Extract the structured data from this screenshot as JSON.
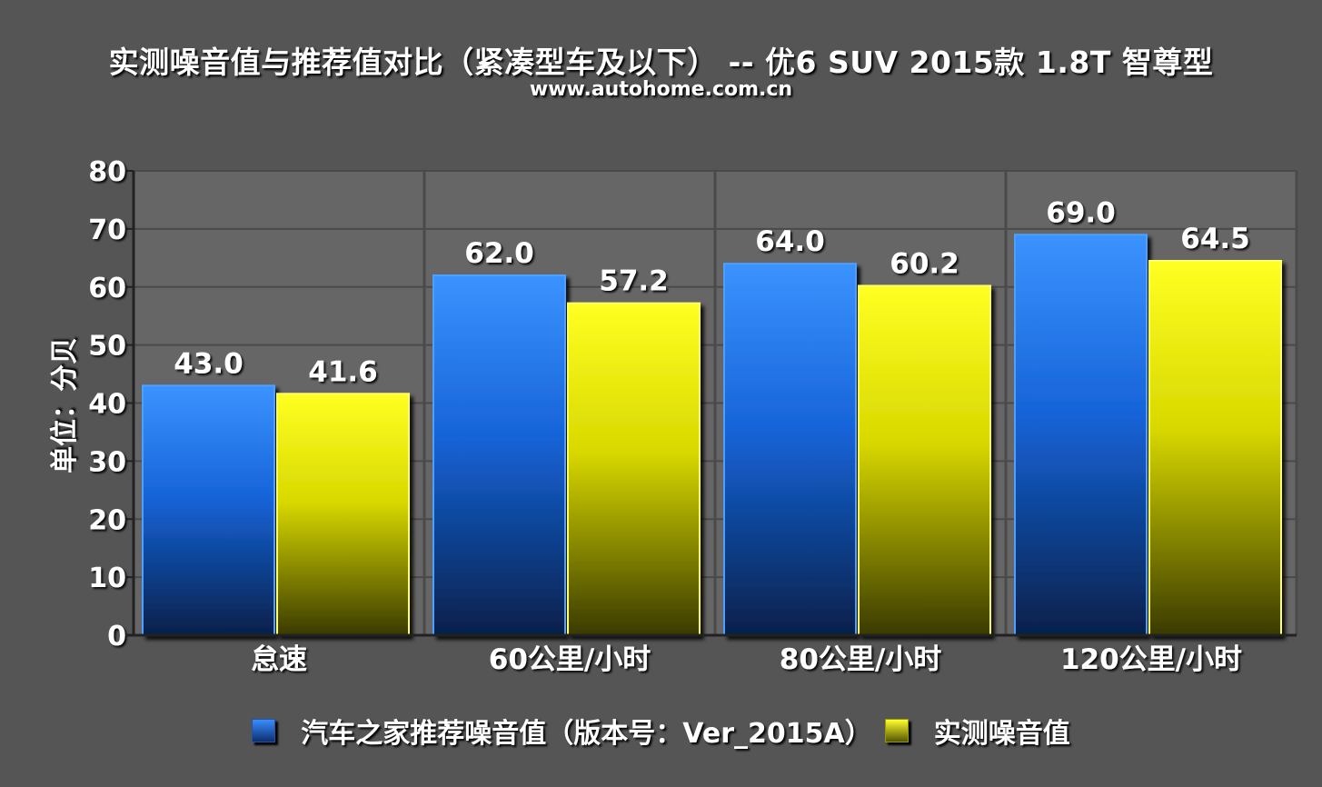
{
  "title": "实测噪音值与推荐值对比（紧凑型车及以下） -- 优6 SUV 2015款 1.8T 智尊型",
  "subtitle": "www.autohome.com.cn",
  "chart_data": {
    "type": "bar",
    "categories": [
      "怠速",
      "60公里/小时",
      "80公里/小时",
      "120公里/小时"
    ],
    "series": [
      {
        "name": "汽车之家推荐噪音值（版本号：Ver_2015A）",
        "values": [
          43.0,
          62.0,
          64.0,
          69.0
        ],
        "color": "#2e86ff"
      },
      {
        "name": "实测噪音值",
        "values": [
          41.6,
          57.2,
          60.2,
          64.5
        ],
        "color": "#ffff1a"
      }
    ],
    "ylabel": "单位：分贝",
    "ylim": [
      0,
      80
    ],
    "yticks": [
      0,
      10,
      20,
      30,
      40,
      50,
      60,
      70,
      80
    ],
    "value_format": "0.0",
    "grid": true,
    "legend": "bottom",
    "background": "#555555",
    "plot_background": "#666666"
  }
}
